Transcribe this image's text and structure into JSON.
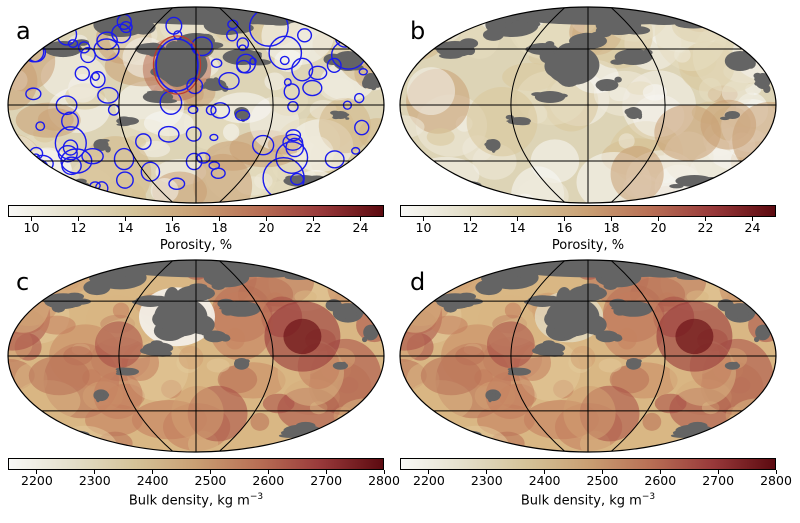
{
  "panels": [
    {
      "id": "a",
      "letter": "a",
      "field": "porosity",
      "craters": true
    },
    {
      "id": "b",
      "letter": "b",
      "field": "porosity",
      "craters": false
    },
    {
      "id": "c",
      "letter": "c",
      "field": "density",
      "craters": false
    },
    {
      "id": "d",
      "letter": "d",
      "field": "density",
      "craters": false
    }
  ],
  "colorbars": {
    "porosity": {
      "title": "Porosity, %",
      "ticks": [
        "10",
        "12",
        "14",
        "16",
        "18",
        "20",
        "22",
        "24"
      ],
      "range": [
        9,
        25
      ]
    },
    "density": {
      "title_main": "Bulk density, kg m",
      "title_sup": "−3",
      "ticks": [
        "2200",
        "2300",
        "2400",
        "2500",
        "2600",
        "2700",
        "2800"
      ],
      "range": [
        2150,
        2800
      ]
    }
  },
  "colors": {
    "colormap": [
      "#f8f8f6",
      "#e4dfca",
      "#d4c399",
      "#c99f73",
      "#b86f55",
      "#98393a",
      "#5c0a10"
    ],
    "mare": "#646464",
    "crater_outline": "#1a1aee",
    "grid": "#000000"
  }
}
